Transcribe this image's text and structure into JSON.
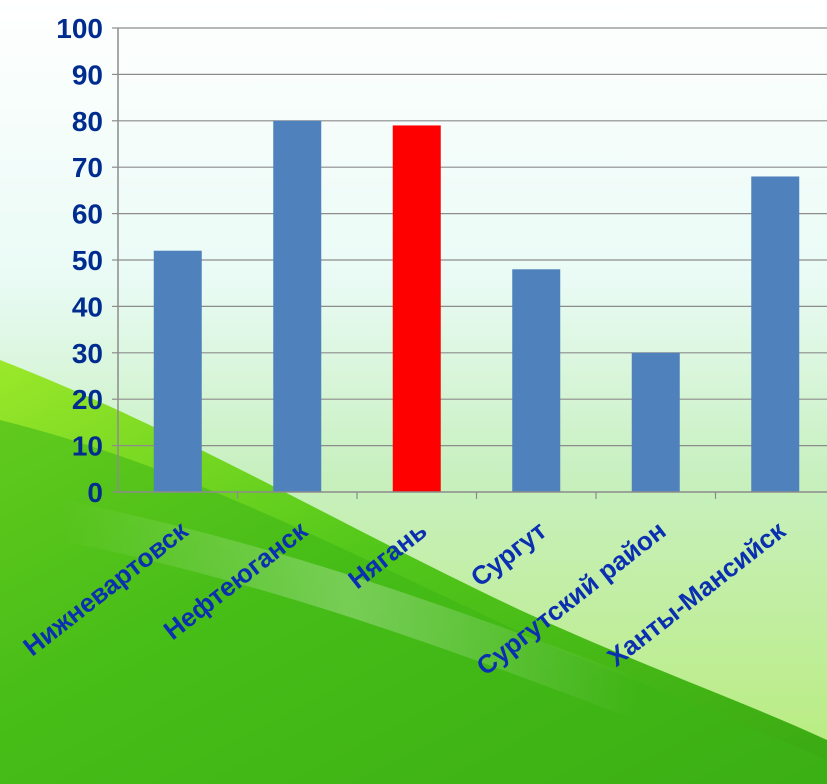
{
  "chart_data": {
    "type": "bar",
    "categories": [
      "Нижневартовск",
      "Нефтеюганск",
      "Нягань",
      "Сургут",
      "Сургутский район",
      "Ханты-Мансийск"
    ],
    "values": [
      52,
      80,
      79,
      48,
      30,
      68
    ],
    "ylim": [
      0,
      100
    ],
    "yticks": [
      "0",
      "10",
      "20",
      "30",
      "40",
      "50",
      "60",
      "70",
      "80",
      "90",
      "100"
    ],
    "grid": true,
    "bar_color": "#4f81bd",
    "highlight_color": "#ff0000",
    "highlight_index": 2
  }
}
